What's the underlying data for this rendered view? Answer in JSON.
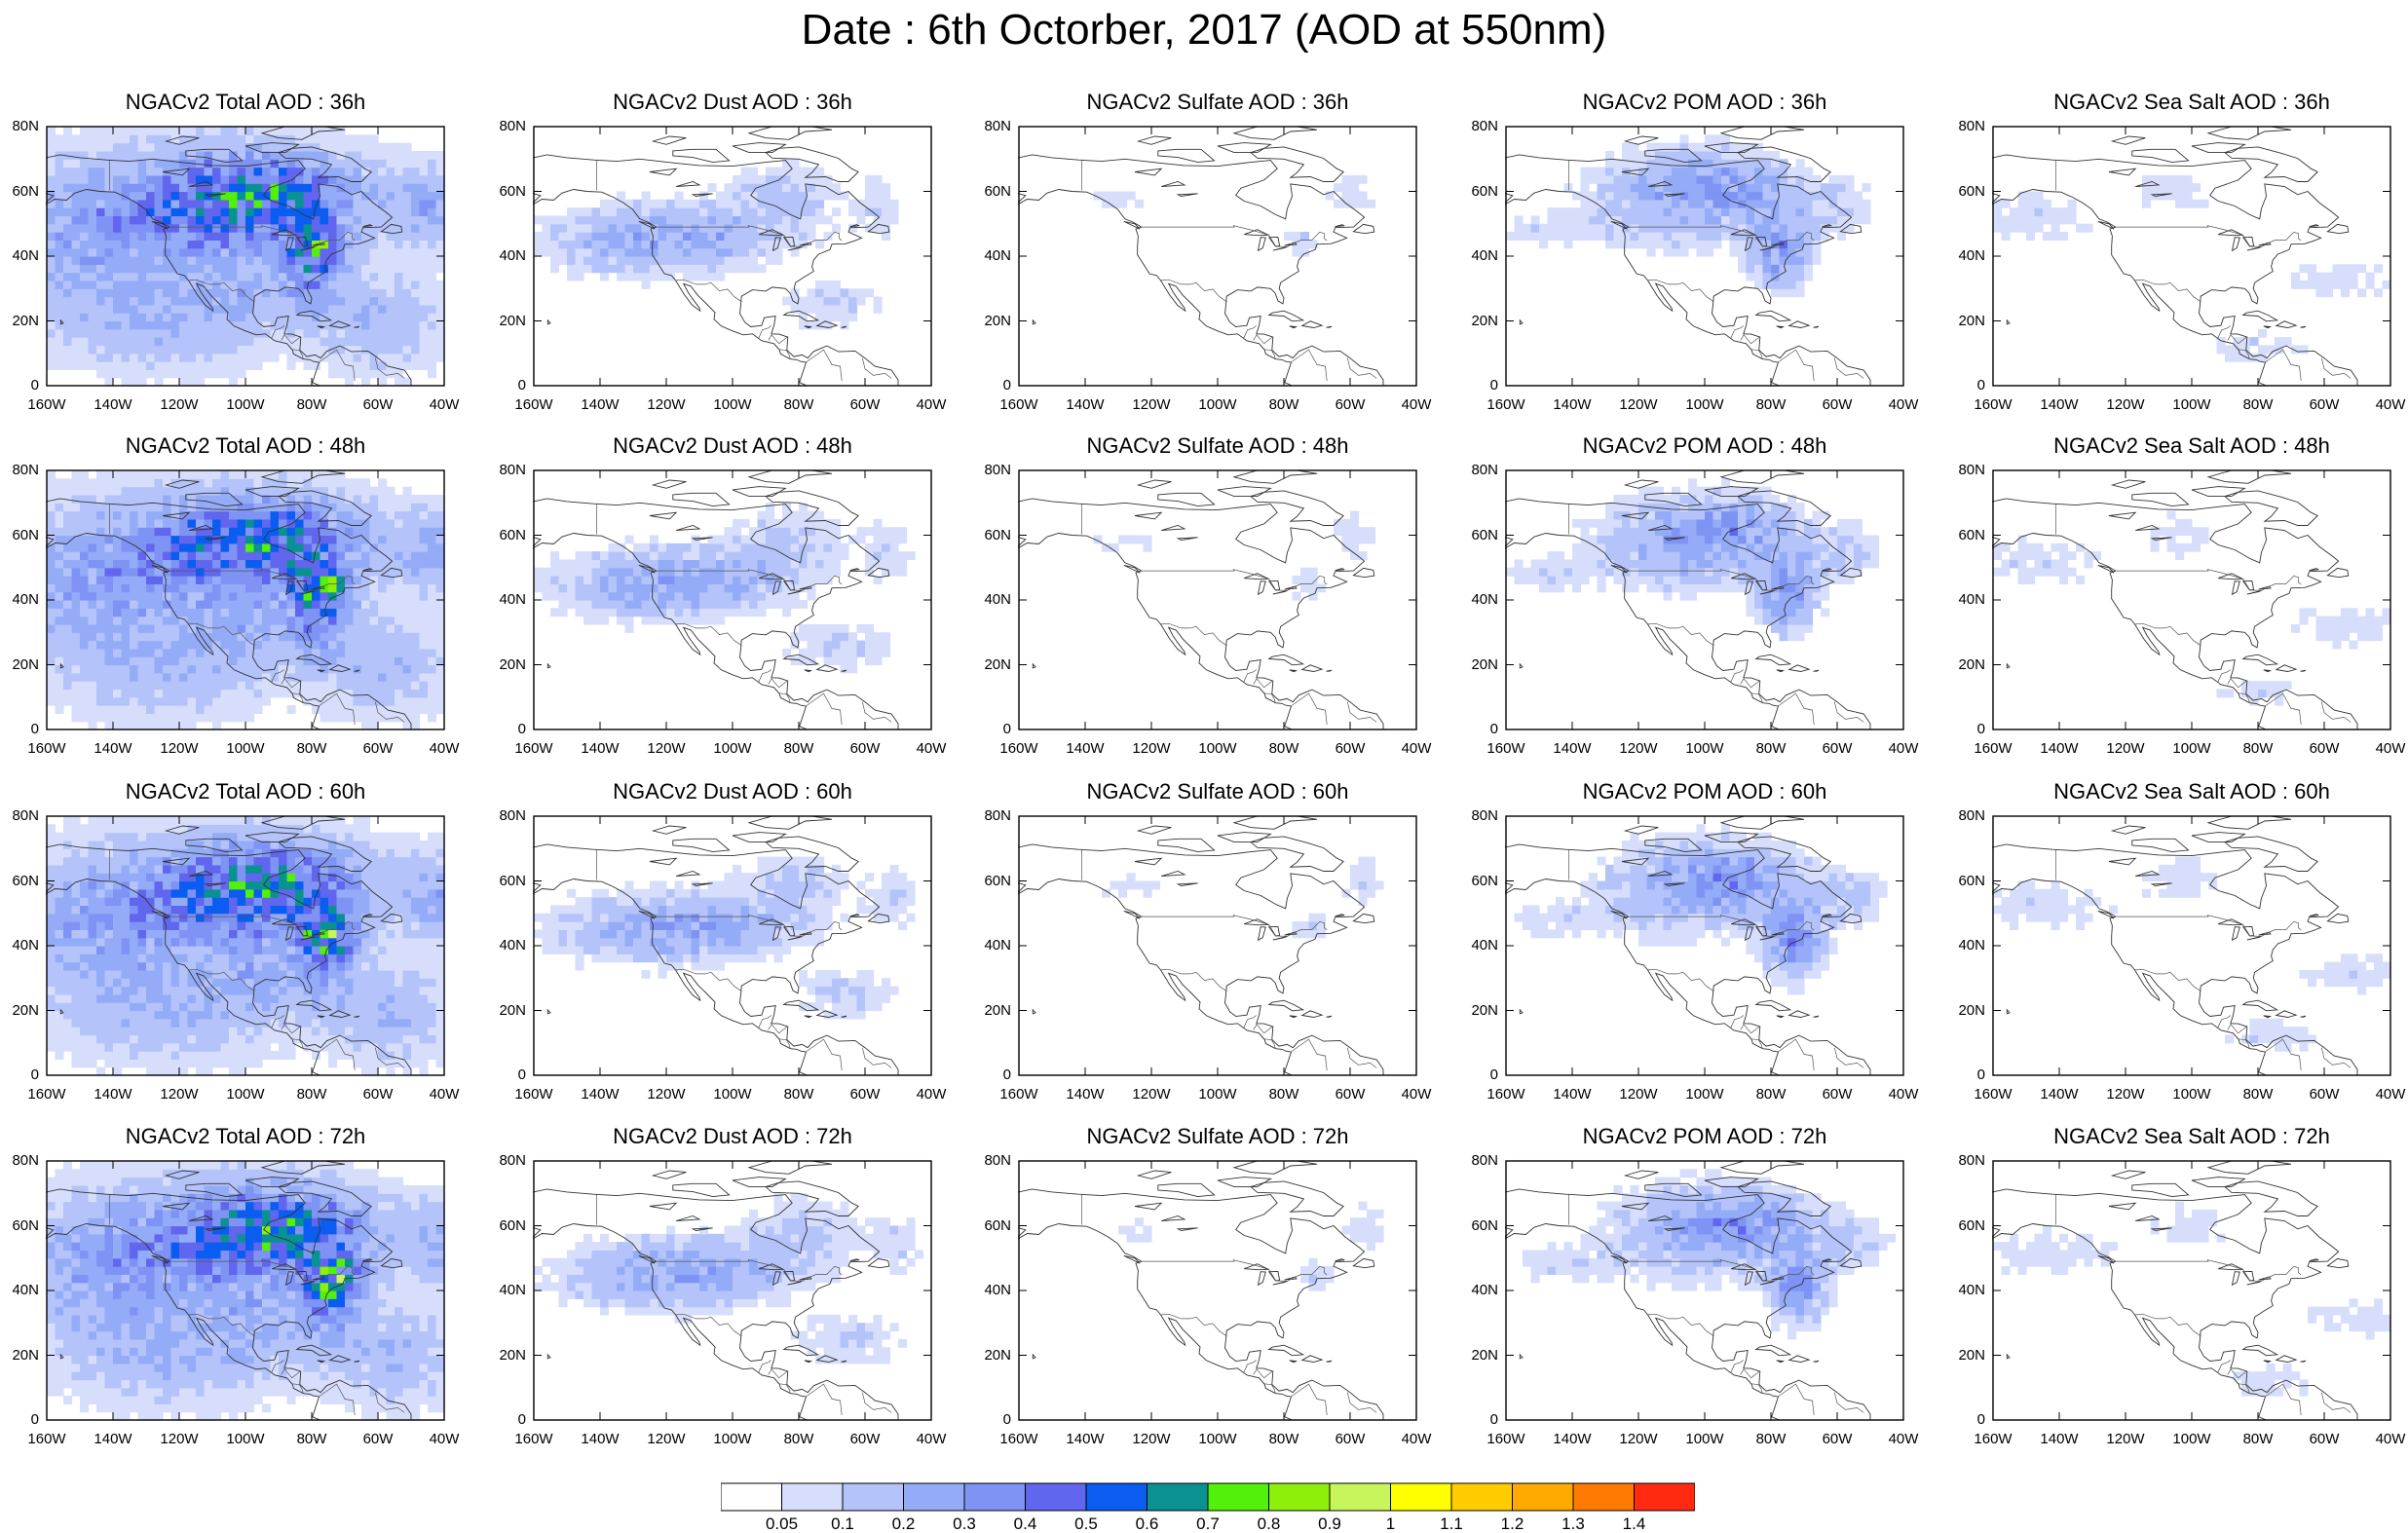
{
  "figure": {
    "title": "Date : 6th Octorber, 2017 (AOD at 550nm)"
  },
  "axes": {
    "lat_ticks": [
      "80N",
      "60N",
      "40N",
      "20N",
      "0"
    ],
    "lon_ticks": [
      "160W",
      "140W",
      "120W",
      "100W",
      "80W",
      "60W",
      "40W"
    ],
    "lat_range": [
      0,
      80
    ],
    "lon_range": [
      -160,
      -40
    ]
  },
  "panels": [
    {
      "title": "NGACv2 Total AOD : 36h",
      "species": "total",
      "hour": 36
    },
    {
      "title": "NGACv2 Dust AOD : 36h",
      "species": "dust",
      "hour": 36
    },
    {
      "title": "NGACv2 Sulfate AOD : 36h",
      "species": "sulfate",
      "hour": 36
    },
    {
      "title": "NGACv2 POM AOD : 36h",
      "species": "pom",
      "hour": 36
    },
    {
      "title": "NGACv2 Sea Salt AOD : 36h",
      "species": "seasalt",
      "hour": 36
    },
    {
      "title": "NGACv2 Total AOD : 48h",
      "species": "total",
      "hour": 48
    },
    {
      "title": "NGACv2 Dust AOD : 48h",
      "species": "dust",
      "hour": 48
    },
    {
      "title": "NGACv2 Sulfate AOD : 48h",
      "species": "sulfate",
      "hour": 48
    },
    {
      "title": "NGACv2 POM AOD : 48h",
      "species": "pom",
      "hour": 48
    },
    {
      "title": "NGACv2 Sea Salt AOD : 48h",
      "species": "seasalt",
      "hour": 48
    },
    {
      "title": "NGACv2 Total AOD : 60h",
      "species": "total",
      "hour": 60
    },
    {
      "title": "NGACv2 Dust AOD : 60h",
      "species": "dust",
      "hour": 60
    },
    {
      "title": "NGACv2 Sulfate AOD : 60h",
      "species": "sulfate",
      "hour": 60
    },
    {
      "title": "NGACv2 POM AOD : 60h",
      "species": "pom",
      "hour": 60
    },
    {
      "title": "NGACv2 Sea Salt AOD : 60h",
      "species": "seasalt",
      "hour": 60
    },
    {
      "title": "NGACv2 Total AOD : 72h",
      "species": "total",
      "hour": 72
    },
    {
      "title": "NGACv2 Dust AOD : 72h",
      "species": "dust",
      "hour": 72
    },
    {
      "title": "NGACv2 Sulfate AOD : 72h",
      "species": "sulfate",
      "hour": 72
    },
    {
      "title": "NGACv2 POM AOD : 72h",
      "species": "pom",
      "hour": 72
    },
    {
      "title": "NGACv2 Sea Salt  AOD : 72h",
      "species": "seasalt",
      "hour": 72
    }
  ],
  "colorbar": {
    "colors": [
      "#ffffff",
      "#d6defc",
      "#b4c3fa",
      "#94acf8",
      "#7f93f4",
      "#6066ee",
      "#0a5df0",
      "#0a9292",
      "#52f00a",
      "#8ef00a",
      "#c9f55c",
      "#ffff00",
      "#ffcc00",
      "#ffaa00",
      "#ff7a00",
      "#ff2a10"
    ],
    "labels": [
      "0.05",
      "0.1",
      "0.2",
      "0.3",
      "0.4",
      "0.5",
      "0.6",
      "0.7",
      "0.8",
      "0.9",
      "1",
      "1.1",
      "1.2",
      "1.3",
      "1.4"
    ]
  }
}
